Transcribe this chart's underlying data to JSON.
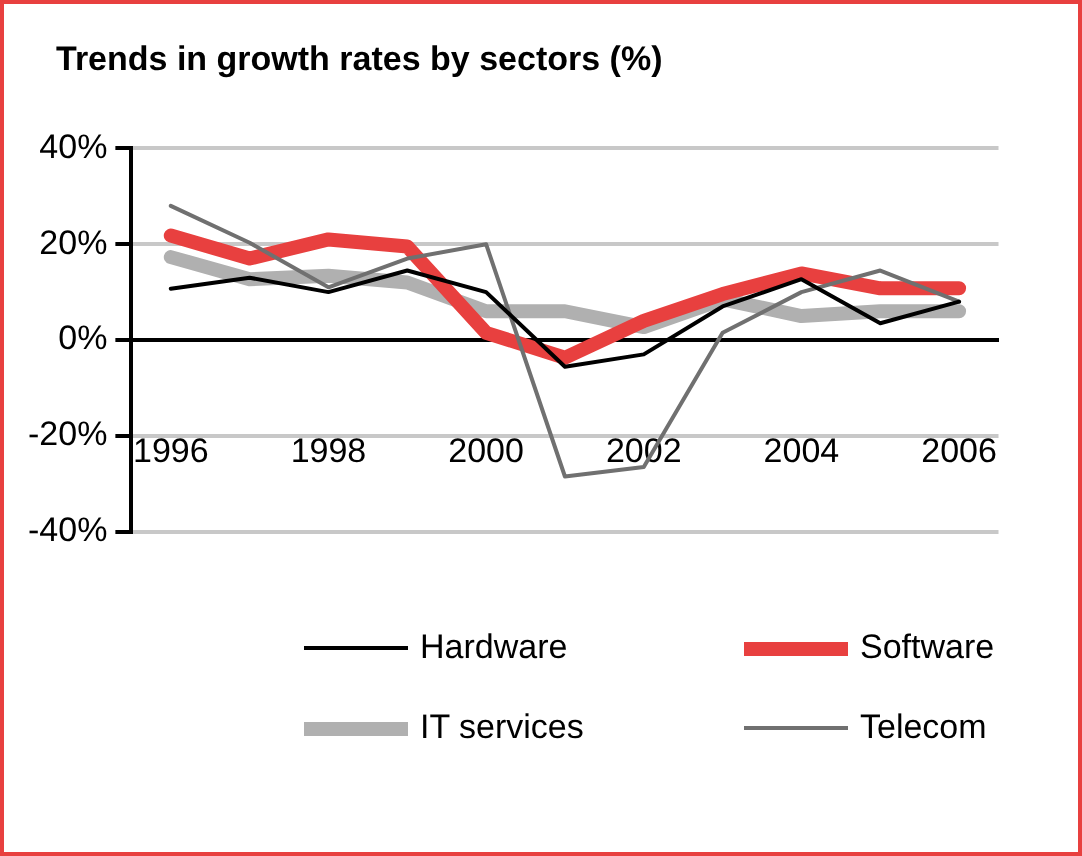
{
  "chart_data": {
    "type": "line",
    "title": "Trends in growth rates by sectors (%)",
    "categories": [
      "1996",
      null,
      "1998",
      null,
      "2000",
      null,
      "2002",
      null,
      "2004",
      null,
      "2006"
    ],
    "series": [
      {
        "name": "Hardware",
        "color": "#000000",
        "values": [
          10.7,
          13,
          10,
          14.5,
          10,
          -5.6,
          -3,
          7,
          12.7,
          3.5,
          8
        ]
      },
      {
        "name": "Software",
        "color": "#e8403f",
        "values": [
          21.8,
          17,
          21,
          19.5,
          1.5,
          -3.7,
          4,
          9.6,
          13.9,
          10.8,
          10.8
        ]
      },
      {
        "name": "IT services",
        "color": "#b0b0b0",
        "values": [
          17.3,
          12.7,
          13.4,
          12,
          6,
          6,
          2.7,
          8.5,
          5,
          6,
          6
        ]
      },
      {
        "name": "Telecom",
        "color": "#707070",
        "values": [
          28,
          20.3,
          11,
          17,
          20,
          -28.5,
          -26.5,
          1.5,
          10,
          14.5,
          8
        ]
      }
    ],
    "ylim": [
      -40,
      40
    ],
    "yticks": [
      {
        "value": -40,
        "label": "-40%"
      },
      {
        "value": -20,
        "label": "-20%"
      },
      {
        "value": 0,
        "label": "0%"
      },
      {
        "value": 20,
        "label": "20%"
      },
      {
        "value": 40,
        "label": "40%"
      }
    ],
    "grid": "y",
    "legend": "bottom",
    "marker": "none",
    "line_style": "solid"
  }
}
